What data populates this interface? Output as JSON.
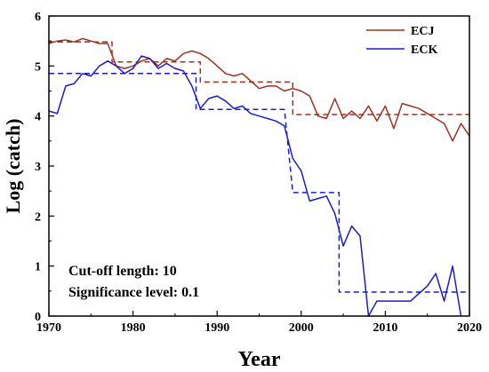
{
  "chart_data": {
    "type": "line",
    "xlabel": "Year",
    "ylabel": "Log (catch)",
    "xlim": [
      1970,
      2020
    ],
    "ylim": [
      0,
      6
    ],
    "xticks": [
      1970,
      1980,
      1990,
      2000,
      2010,
      2020
    ],
    "yticks": [
      0,
      1,
      2,
      3,
      4,
      5,
      6
    ],
    "grid": false,
    "legend": "top-right",
    "annotations": [
      "Cut-off length: 10",
      "Significance level: 0.1"
    ],
    "series": [
      {
        "name": "ECJ",
        "color": "#a0311e",
        "style": "solid",
        "x": [
          1970,
          1971,
          1972,
          1973,
          1974,
          1975,
          1976,
          1977,
          1978,
          1979,
          1980,
          1981,
          1982,
          1983,
          1984,
          1985,
          1986,
          1987,
          1988,
          1989,
          1990,
          1991,
          1992,
          1993,
          1994,
          1995,
          1996,
          1997,
          1998,
          1999,
          2000,
          2001,
          2002,
          2003,
          2004,
          2005,
          2006,
          2007,
          2008,
          2009,
          2010,
          2011,
          2012,
          2013,
          2014,
          2015,
          2016,
          2017,
          2018,
          2019,
          2020
        ],
        "y": [
          5.45,
          5.5,
          5.52,
          5.48,
          5.55,
          5.5,
          5.45,
          5.45,
          5.0,
          4.95,
          5.0,
          5.1,
          5.15,
          5.0,
          5.15,
          5.1,
          5.25,
          5.3,
          5.25,
          5.15,
          5.0,
          4.85,
          4.8,
          4.85,
          4.7,
          4.55,
          4.6,
          4.6,
          4.5,
          4.55,
          4.5,
          4.4,
          4.0,
          3.95,
          4.35,
          3.95,
          4.1,
          3.95,
          4.2,
          3.9,
          4.2,
          3.75,
          4.25,
          4.2,
          4.15,
          4.05,
          3.95,
          3.85,
          3.5,
          3.85,
          3.6
        ]
      },
      {
        "name": "ECK",
        "color": "#1c1ccc",
        "style": "solid",
        "x": [
          1970,
          1971,
          1972,
          1973,
          1974,
          1975,
          1976,
          1977,
          1978,
          1979,
          1980,
          1981,
          1982,
          1983,
          1984,
          1985,
          1986,
          1987,
          1988,
          1989,
          1990,
          1991,
          1992,
          1993,
          1994,
          1995,
          1996,
          1997,
          1998,
          1999,
          2000,
          2001,
          2002,
          2003,
          2004,
          2005,
          2006,
          2007,
          2008,
          2009,
          2010,
          2011,
          2012,
          2013,
          2014,
          2015,
          2016,
          2017,
          2018,
          2019
        ],
        "y": [
          4.1,
          4.05,
          4.6,
          4.65,
          4.85,
          4.8,
          5.0,
          5.1,
          5.0,
          4.85,
          4.95,
          5.2,
          5.15,
          4.95,
          5.05,
          4.95,
          4.9,
          4.6,
          4.15,
          4.35,
          4.4,
          4.3,
          4.15,
          4.2,
          4.05,
          4.0,
          3.95,
          3.9,
          3.8,
          3.15,
          2.9,
          2.3,
          2.35,
          2.4,
          2.05,
          1.4,
          1.8,
          1.6,
          0.0,
          0.3,
          0.3,
          0.3,
          0.3,
          0.3,
          0.45,
          0.6,
          0.85,
          0.3,
          1.0,
          0.0
        ]
      },
      {
        "color": "#a0311e",
        "style": "dashed",
        "x": [
          1970,
          1977.5,
          1977.5,
          1988,
          1988,
          1999,
          1999,
          2020
        ],
        "y": [
          5.48,
          5.48,
          5.08,
          5.08,
          4.68,
          4.68,
          4.03,
          4.03
        ]
      },
      {
        "color": "#1c1ccc",
        "style": "dashed",
        "x": [
          1970,
          1987.5,
          1987.5,
          1998,
          1998,
          1999,
          1999,
          2004.5,
          2004.5,
          2020
        ],
        "y": [
          4.85,
          4.85,
          4.13,
          4.13,
          4.13,
          2.47,
          2.47,
          2.47,
          0.48,
          0.48
        ]
      }
    ]
  }
}
